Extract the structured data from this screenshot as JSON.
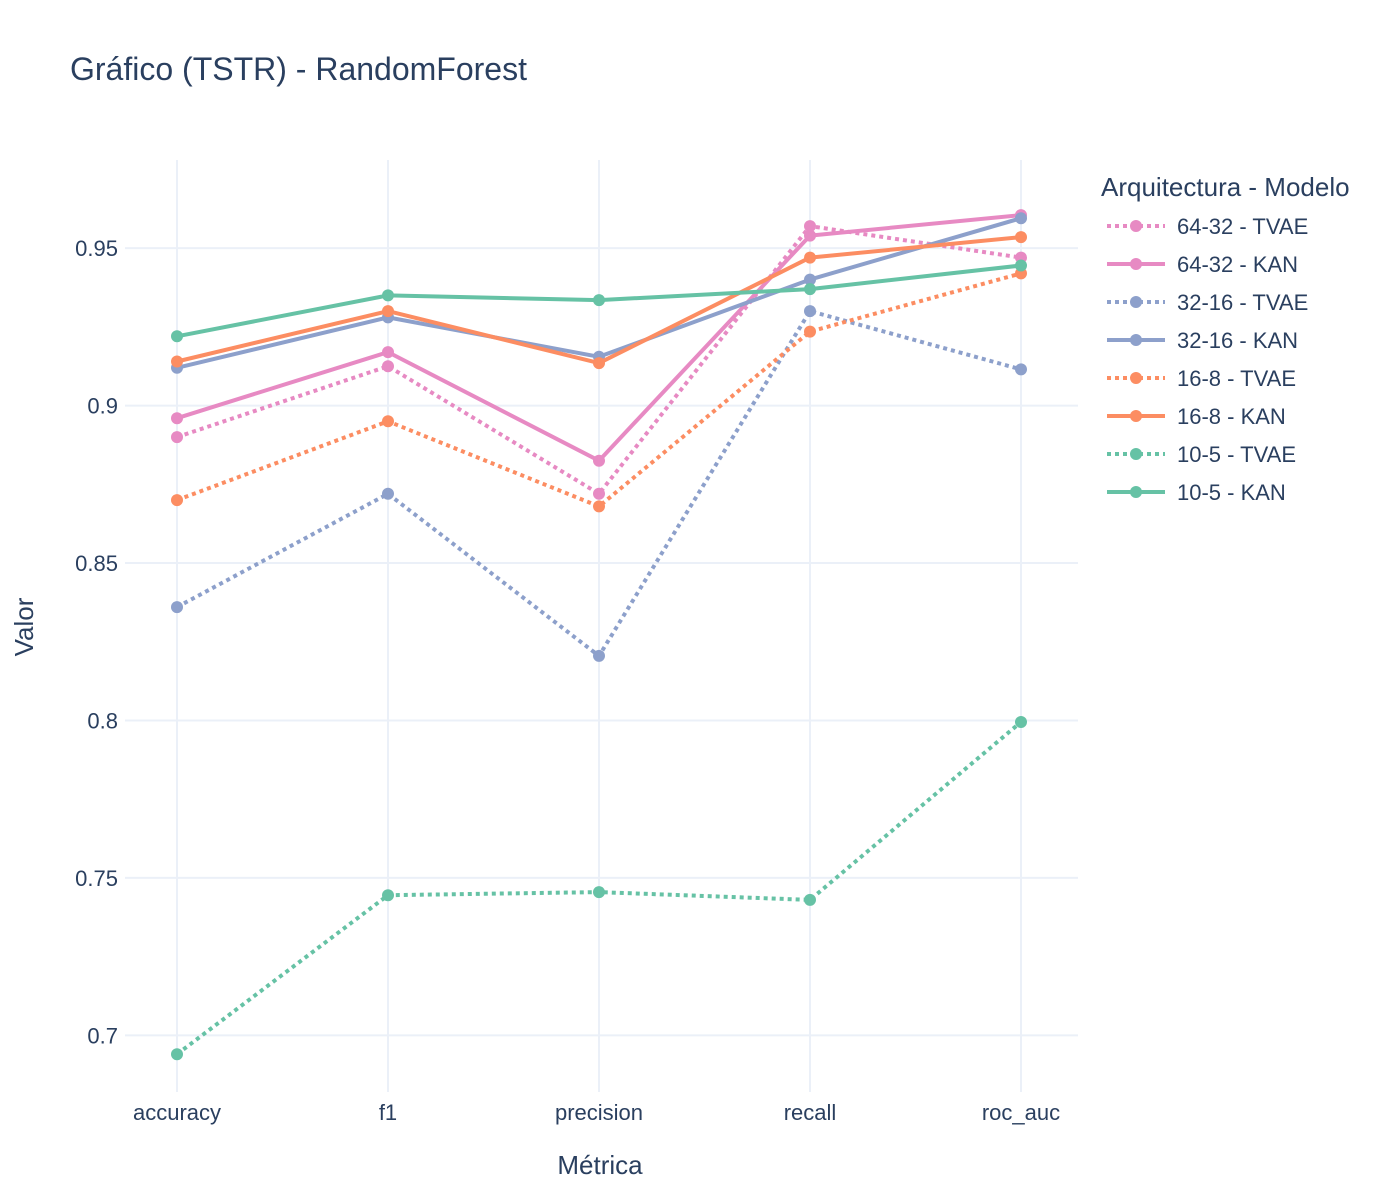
{
  "chart_data": {
    "type": "line",
    "title": "Gráfico (TSTR) - RandomForest",
    "xlabel": "Métrica",
    "ylabel": "Valor",
    "categories": [
      "accuracy",
      "f1",
      "precision",
      "recall",
      "roc_auc"
    ],
    "yticks": [
      0.7,
      0.75,
      0.8,
      0.85,
      0.9,
      0.95
    ],
    "ytick_labels": [
      "0.7",
      "0.75",
      "0.8",
      "0.85",
      "0.9",
      "0.95"
    ],
    "ylim": [
      0.682,
      0.978
    ],
    "grid": true,
    "legend_title": "Arquitectura - Modelo",
    "legend_position": "right",
    "series": [
      {
        "name": "64-32 - TVAE",
        "color": "#e78ac3",
        "dash": "dot",
        "values": [
          0.89,
          0.9125,
          0.872,
          0.957,
          0.947
        ]
      },
      {
        "name": "64-32 - KAN",
        "color": "#e78ac3",
        "dash": "solid",
        "values": [
          0.896,
          0.917,
          0.8825,
          0.954,
          0.9605
        ]
      },
      {
        "name": "32-16 - TVAE",
        "color": "#8da0cb",
        "dash": "dot",
        "values": [
          0.836,
          0.872,
          0.8205,
          0.93,
          0.9115
        ]
      },
      {
        "name": "32-16 - KAN",
        "color": "#8da0cb",
        "dash": "solid",
        "values": [
          0.912,
          0.928,
          0.9155,
          0.94,
          0.9595
        ]
      },
      {
        "name": "16-8 - TVAE",
        "color": "#fc8d62",
        "dash": "dot",
        "values": [
          0.87,
          0.895,
          0.868,
          0.9235,
          0.942
        ]
      },
      {
        "name": "16-8 - KAN",
        "color": "#fc8d62",
        "dash": "solid",
        "values": [
          0.914,
          0.93,
          0.9135,
          0.947,
          0.9535
        ]
      },
      {
        "name": "10-5 - TVAE",
        "color": "#66c2a5",
        "dash": "dot",
        "values": [
          0.694,
          0.7445,
          0.7455,
          0.743,
          0.7995
        ]
      },
      {
        "name": "10-5 - KAN",
        "color": "#66c2a5",
        "dash": "solid",
        "values": [
          0.922,
          0.935,
          0.9335,
          0.937,
          0.9445
        ]
      }
    ]
  }
}
